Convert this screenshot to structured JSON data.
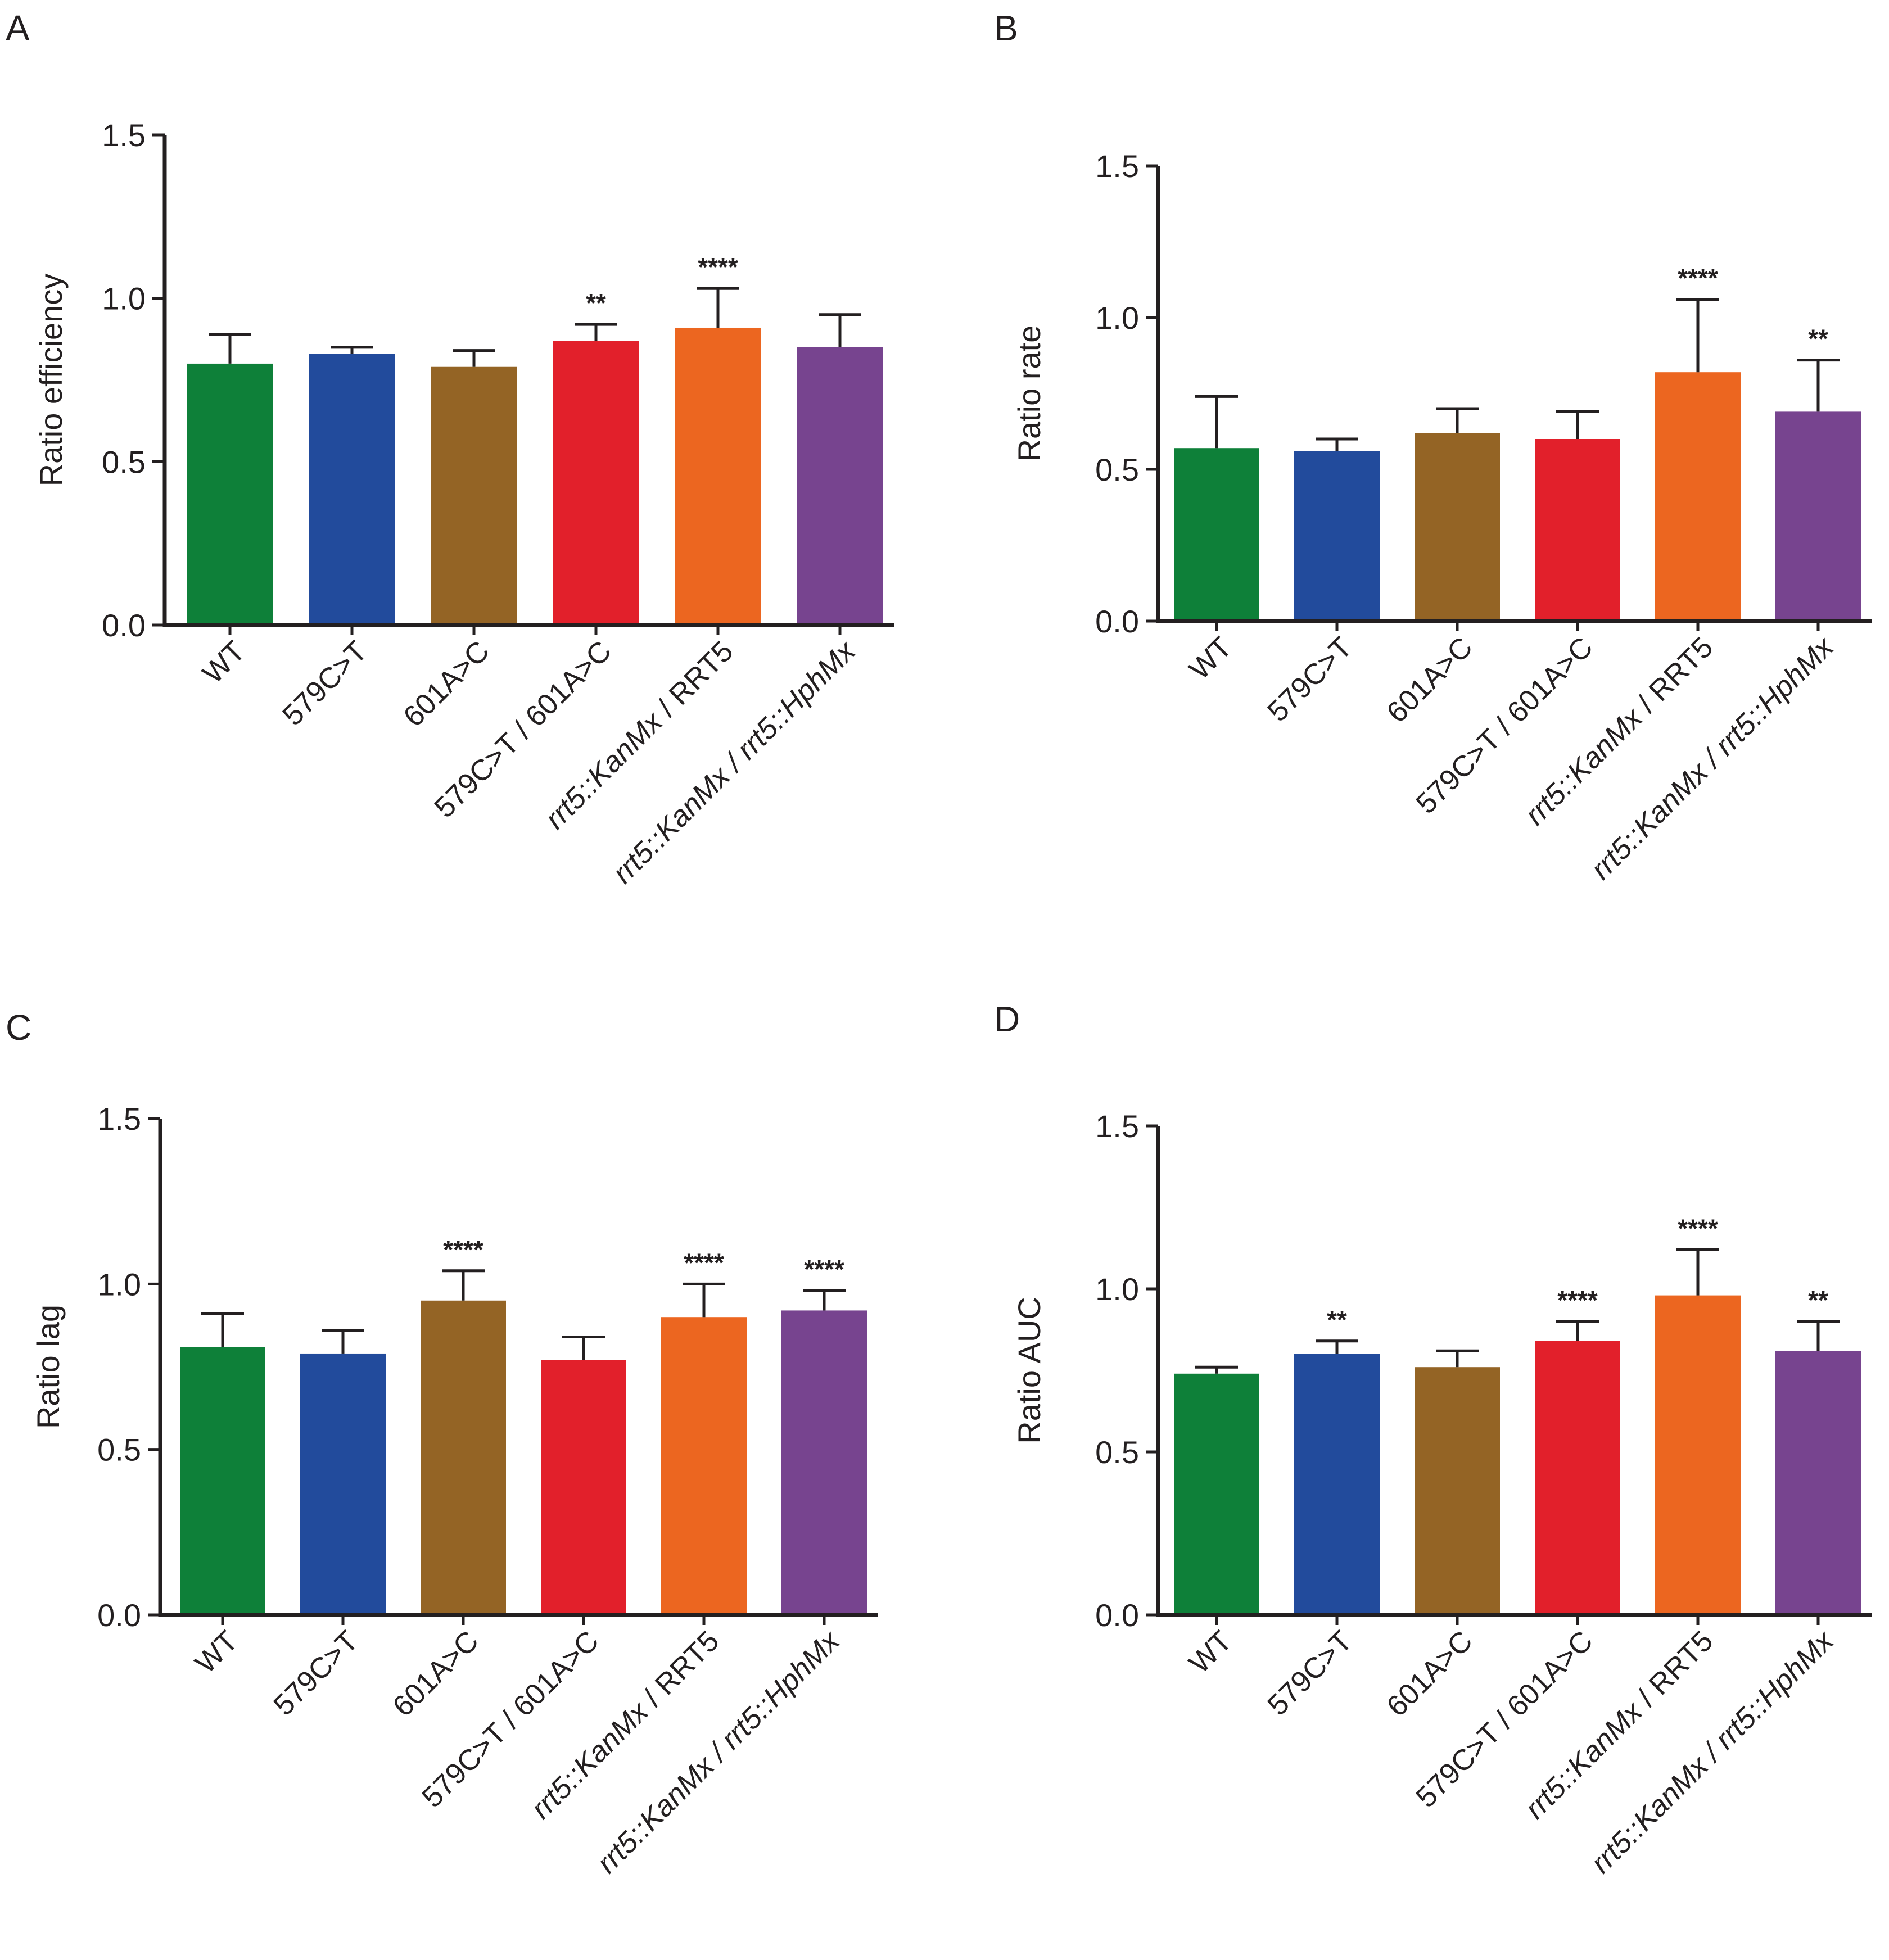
{
  "chart_data": [
    {
      "panel": "A",
      "type": "bar",
      "ylabel": "Ratio efficiency",
      "ylim": [
        0,
        1.5
      ],
      "yticks": [
        "0.0",
        "0.5",
        "1.0",
        "1.5"
      ],
      "categories": [
        {
          "text": "WT",
          "italic_part": ""
        },
        {
          "text": "579C>T",
          "italic_part": ""
        },
        {
          "text": "601A>C",
          "italic_part": ""
        },
        {
          "text": "579C>T / 601A>C",
          "italic_part": ""
        },
        {
          "text": "rrt5::KanMx / RRT5",
          "italic_part": "rrt5::KanMx"
        },
        {
          "text": "rrt5::KanMx / rrt5::HphMx",
          "italic_part": "all"
        }
      ],
      "values": [
        0.8,
        0.83,
        0.79,
        0.87,
        0.91,
        0.85
      ],
      "errors": [
        0.09,
        0.02,
        0.05,
        0.05,
        0.12,
        0.1
      ],
      "significance": [
        "",
        "",
        "",
        "**",
        "****",
        ""
      ]
    },
    {
      "panel": "B",
      "type": "bar",
      "ylabel": "Ratio rate",
      "ylim": [
        0,
        1.5
      ],
      "yticks": [
        "0.0",
        "0.5",
        "1.0",
        "1.5"
      ],
      "categories": [
        {
          "text": "WT",
          "italic_part": ""
        },
        {
          "text": "579C>T",
          "italic_part": ""
        },
        {
          "text": "601A>C",
          "italic_part": ""
        },
        {
          "text": "579C>T / 601A>C",
          "italic_part": ""
        },
        {
          "text": "rrt5::KanMx / RRT5",
          "italic_part": "rrt5::KanMx"
        },
        {
          "text": "rrt5::KanMx / rrt5::HphMx",
          "italic_part": "all"
        }
      ],
      "values": [
        0.57,
        0.56,
        0.62,
        0.6,
        0.82,
        0.69
      ],
      "errors": [
        0.17,
        0.04,
        0.08,
        0.09,
        0.24,
        0.17
      ],
      "significance": [
        "",
        "",
        "",
        "",
        "****",
        "**"
      ]
    },
    {
      "panel": "C",
      "type": "bar",
      "ylabel": "Ratio lag",
      "ylim": [
        0,
        1.5
      ],
      "yticks": [
        "0.0",
        "0.5",
        "1.0",
        "1.5"
      ],
      "categories": [
        {
          "text": "WT",
          "italic_part": ""
        },
        {
          "text": "579C>T",
          "italic_part": ""
        },
        {
          "text": "601A>C",
          "italic_part": ""
        },
        {
          "text": "579C>T / 601A>C",
          "italic_part": ""
        },
        {
          "text": "rrt5::KanMx / RRT5",
          "italic_part": "rrt5::KanMx"
        },
        {
          "text": "rrt5::KanMx / rrt5::HphMx",
          "italic_part": "all"
        }
      ],
      "values": [
        0.81,
        0.79,
        0.95,
        0.77,
        0.9,
        0.92
      ],
      "errors": [
        0.1,
        0.07,
        0.09,
        0.07,
        0.1,
        0.06
      ],
      "significance": [
        "",
        "",
        "****",
        "",
        "****",
        "****"
      ]
    },
    {
      "panel": "D",
      "type": "bar",
      "ylabel": "Ratio AUC",
      "ylim": [
        0,
        1.5
      ],
      "yticks": [
        "0.0",
        "0.5",
        "1.0",
        "1.5"
      ],
      "categories": [
        {
          "text": "WT",
          "italic_part": ""
        },
        {
          "text": "579C>T",
          "italic_part": ""
        },
        {
          "text": "601A>C",
          "italic_part": ""
        },
        {
          "text": "579C>T / 601A>C",
          "italic_part": ""
        },
        {
          "text": "rrt5::KanMx / RRT5",
          "italic_part": "rrt5::KanMx"
        },
        {
          "text": "rrt5::KanMx / rrt5::HphMx",
          "italic_part": "all"
        }
      ],
      "values": [
        0.74,
        0.8,
        0.76,
        0.84,
        0.98,
        0.81
      ],
      "errors": [
        0.02,
        0.04,
        0.05,
        0.06,
        0.14,
        0.09
      ],
      "significance": [
        "",
        "**",
        "",
        "****",
        "****",
        "**"
      ]
    }
  ],
  "colors": [
    "#0e8039",
    "#224b9c",
    "#946425",
    "#e2202b",
    "#ec6620",
    "#77448f"
  ]
}
